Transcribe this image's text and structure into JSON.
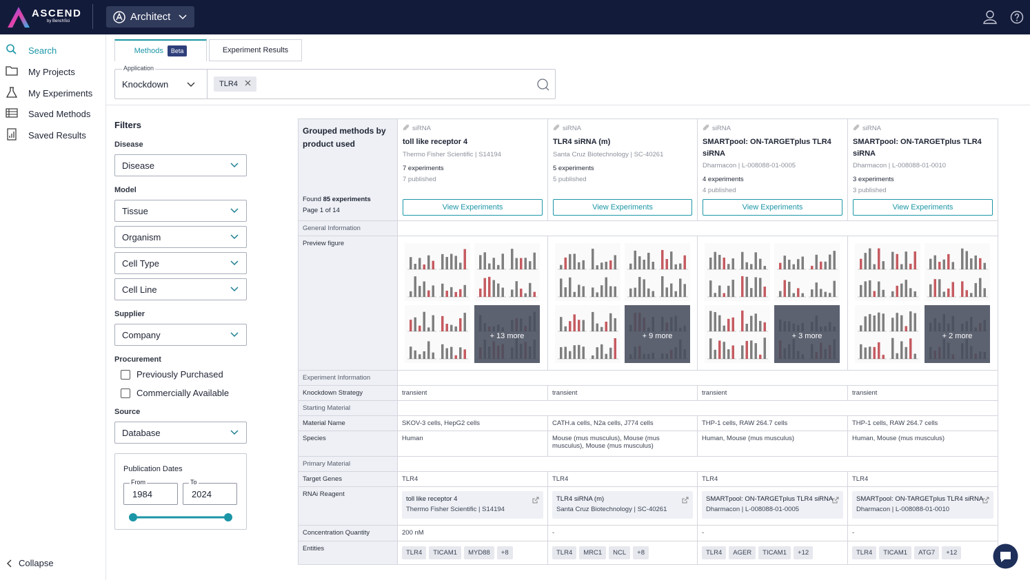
{
  "header": {
    "brand": "ASCEND",
    "brand_sub": "by BenchSci",
    "workspace": "Architect"
  },
  "sidebar": {
    "nav": [
      "Search",
      "My Projects",
      "My Experiments",
      "Saved Methods",
      "Saved Results"
    ],
    "collapse": "Collapse"
  },
  "tabs": [
    {
      "label": "Methods",
      "badge": "Beta"
    },
    {
      "label": "Experiment Results"
    }
  ],
  "search": {
    "application_label": "Application",
    "application": "Knockdown",
    "chips": [
      "TLR4"
    ]
  },
  "filters": {
    "title": "Filters",
    "groups": [
      {
        "label": "Disease",
        "selects": [
          "Disease"
        ]
      },
      {
        "label": "Model",
        "selects": [
          "Tissue",
          "Organism",
          "Cell Type",
          "Cell Line"
        ]
      },
      {
        "label": "Supplier",
        "selects": [
          "Company"
        ]
      },
      {
        "label": "Procurement",
        "checkboxes": [
          "Previously Purchased",
          "Commercially Available"
        ]
      },
      {
        "label": "Source",
        "selects": [
          "Database"
        ]
      }
    ],
    "publication_dates": {
      "label": "Publication Dates",
      "from_label": "From",
      "from": "1984",
      "to_label": "To",
      "to": "2024"
    }
  },
  "table": {
    "heading": "Grouped methods by product used",
    "found_label": "Found",
    "found": "85 experiments",
    "page": "Page 1 of 14",
    "button": "View Experiments",
    "columns": [
      {
        "type": "siRNA",
        "name": "toll like receptor 4",
        "source": "Thermo Fisher Scientific | S14194",
        "experiments": "7 experiments",
        "published": "7 published"
      },
      {
        "type": "siRNA",
        "name": "TLR4 siRNA (m)",
        "source": "Santa Cruz Biotechnology | SC-40261",
        "experiments": "5 experiments",
        "published": "5 published"
      },
      {
        "type": "siRNA",
        "name": "SMARTpool: ON-TARGETplus TLR4 siRNA",
        "source": "Dharmacon | L-008088-01-0005",
        "experiments": "4 experiments",
        "published": "4 published"
      },
      {
        "type": "siRNA",
        "name": "SMARTpool: ON-TARGETplus TLR4 siRNA",
        "source": "Dharmacon | L-008088-01-0010",
        "experiments": "3 experiments",
        "published": "3 published"
      }
    ],
    "rows": [
      {
        "label": "General Information"
      },
      {
        "label": "Preview figure",
        "cells": [
          {
            "more": "+ 13 more"
          },
          {
            "more": "+ 9 more"
          },
          {
            "more": "+ 3 more"
          },
          {
            "more": "+ 2 more"
          }
        ]
      },
      {
        "label": "Experiment Information"
      },
      {
        "label": "Knockdown Strategy",
        "cells": [
          "transient",
          "transient",
          "transient",
          "transient"
        ]
      },
      {
        "label": "Starting Material"
      },
      {
        "label": "Material Name",
        "cells": [
          "SKOV-3 cells, HepG2 cells",
          "CATH.a cells, N2a cells, J774 cells",
          "THP-1 cells, RAW 264.7 cells",
          "THP-1 cells, RAW 264.7 cells"
        ]
      },
      {
        "label": "Species",
        "cells": [
          "Human",
          "Mouse (mus musculus), Mouse (mus musculus), Mouse (mus musculus)",
          "Human, Mouse (mus musculus)",
          "Human, Mouse (mus musculus)"
        ]
      },
      {
        "label": "Primary Material"
      },
      {
        "label": "Target Genes",
        "cells": [
          "TLR4",
          "TLR4",
          "TLR4",
          "TLR4"
        ]
      },
      {
        "label": "RNAi Reagent",
        "cells": [
          {
            "title": "toll like receptor 4",
            "subtitle": "Thermo Fisher Scientific | S14194"
          },
          {
            "title": "TLR4 siRNA (m)",
            "subtitle": "Santa Cruz Biotechnology | SC-40261"
          },
          {
            "title": "SMARTpool: ON-TARGETplus TLR4 siRNA",
            "subtitle": "Dharmacon | L-008088-01-0005"
          },
          {
            "title": "SMARTpool: ON-TARGETplus TLR4 siRNA",
            "subtitle": "Dharmacon | L-008088-01-0010"
          }
        ]
      },
      {
        "label": "Concentration Quantity",
        "cells": [
          "200 nM",
          "-",
          "-",
          "-"
        ]
      },
      {
        "label": "Entities",
        "cells": [
          [
            "TLR4",
            "TICAM1",
            "MYD88",
            "+8"
          ],
          [
            "TLR4",
            "MRC1",
            "NCL",
            "+8"
          ],
          [
            "TLR4",
            "AGER",
            "TICAM1",
            "+12"
          ],
          [
            "TLR4",
            "TICAM1",
            "ATG7",
            "+12"
          ]
        ]
      }
    ]
  }
}
